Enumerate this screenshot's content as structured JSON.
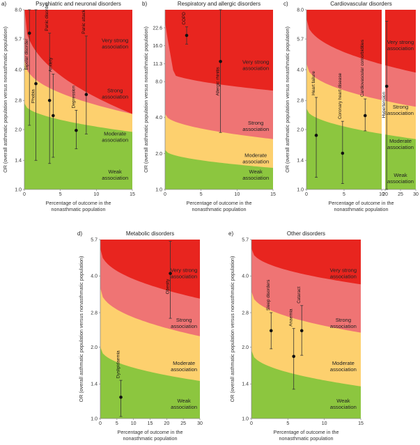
{
  "colors": {
    "weak": "#8cc63f",
    "moderate": "#fdd06e",
    "strong": "#ef7474",
    "very_strong": "#e8251f"
  },
  "y_axis_label": "OR (overall asthmatic population versus nonasthmatic population)",
  "x_axis_label_line1": "Percentage of outcome in the",
  "x_axis_label_line2": "nonasthmatic population",
  "zone_labels": {
    "very_strong": [
      "Very strong",
      "association"
    ],
    "strong": [
      "Strong",
      "association"
    ],
    "moderate": [
      "Moderate",
      "association"
    ],
    "weak": [
      "Weak",
      "association"
    ]
  },
  "chart_data": [
    {
      "id": "a",
      "letter": "a)",
      "title": "Psychiatric and neuronal disorders",
      "type": "scatter",
      "xlim": [
        0,
        15
      ],
      "xticks": [
        "0",
        "5",
        "10",
        "15"
      ],
      "ylim": [
        1.0,
        8.0
      ],
      "yticks": [
        "1.0",
        "1.4",
        "2.0",
        "2.8",
        "4.0",
        "5.7",
        "8.0"
      ],
      "points": [
        {
          "label": "Bipolar disorder",
          "x": 0.7,
          "y": 6.1,
          "lo": 2.1,
          "hi": 8.0
        },
        {
          "label": "Phobia",
          "x": 1.6,
          "y": 3.4,
          "lo": 1.4,
          "hi": 8.0
        },
        {
          "label": "Panic disorder",
          "x": 3.5,
          "y": 2.8,
          "lo": 1.35,
          "hi": 6.1
        },
        {
          "label": "Anxiety",
          "x": 4.0,
          "y": 2.35,
          "lo": 1.45,
          "hi": 3.8
        },
        {
          "label": "Depression",
          "x": 7.2,
          "y": 1.98,
          "lo": 1.6,
          "hi": 2.5
        },
        {
          "label": "Panic attack",
          "x": 8.6,
          "y": 3.0,
          "lo": 1.9,
          "hi": 5.9
        }
      ]
    },
    {
      "id": "b",
      "letter": "b)",
      "title": "Respiratory and allergic disorders",
      "type": "scatter",
      "xlim": [
        0,
        15
      ],
      "xticks": [
        "0",
        "5",
        "10",
        "15"
      ],
      "ylim": [
        1.0,
        32.0
      ],
      "yticks": [
        "1.0",
        "2.0",
        "4.0",
        "8.0",
        "11.3",
        "16.0",
        "22.6"
      ],
      "points": [
        {
          "label": "COPD",
          "x": 3.0,
          "y": 19.5,
          "lo": 16.5,
          "hi": 23.0
        },
        {
          "label": "Allergic rhinitis",
          "x": 7.7,
          "y": 11.8,
          "lo": 3.0,
          "hi": 32.0
        }
      ]
    },
    {
      "id": "c",
      "letter": "c)",
      "title": "Cardiovascular disorders",
      "type": "scatter",
      "xlim": [
        0,
        30
      ],
      "xticks": [
        "0",
        "5",
        "10",
        "20",
        "25",
        "30"
      ],
      "ylim": [
        1.0,
        8.0
      ],
      "yticks": [
        "1.0",
        "1.4",
        "2.0",
        "2.8",
        "4.0",
        "5.7",
        "8.0"
      ],
      "points": [
        {
          "label": "Heart failure",
          "x": 1.3,
          "y": 1.87,
          "lo": 1.15,
          "hi": 2.9
        },
        {
          "label": "Coronary heart disease",
          "x": 4.8,
          "y": 1.52,
          "lo": 1.07,
          "hi": 2.2
        },
        {
          "label": "Cardiovascular comorbidities",
          "x": 7.8,
          "y": 2.35,
          "lo": 1.97,
          "hi": 2.85
        },
        {
          "label": "Hypertension",
          "x": 20.5,
          "y": 3.3,
          "lo": 1.0,
          "hi": 7.0
        }
      ]
    },
    {
      "id": "d",
      "letter": "d)",
      "title": "Metabolic disorders",
      "type": "scatter",
      "xlim": [
        0,
        30
      ],
      "xticks": [
        "0",
        "5",
        "10",
        "15",
        "20",
        "25",
        "30"
      ],
      "ylim": [
        1.0,
        5.7
      ],
      "yticks": [
        "1.0",
        "1.4",
        "2.0",
        "2.8",
        "4.0",
        "5.7"
      ],
      "points": [
        {
          "label": "Dyslipidaemia",
          "x": 6.2,
          "y": 1.23,
          "lo": 1.02,
          "hi": 1.45
        },
        {
          "label": "Obesity",
          "x": 21.1,
          "y": 4.1,
          "lo": 2.65,
          "hi": 5.6
        }
      ]
    },
    {
      "id": "e",
      "letter": "e)",
      "title": "Other disorders",
      "type": "scatter",
      "xlim": [
        0,
        15
      ],
      "xticks": [
        "0",
        "5",
        "10",
        "15"
      ],
      "ylim": [
        1.0,
        5.7
      ],
      "yticks": [
        "1.0",
        "1.4",
        "2.0",
        "2.8",
        "4.0",
        "5.7"
      ],
      "points": [
        {
          "label": "Sleep disorders",
          "x": 2.7,
          "y": 2.35,
          "lo": 1.97,
          "hi": 2.8
        },
        {
          "label": "Anaemia",
          "x": 5.8,
          "y": 1.83,
          "lo": 1.33,
          "hi": 2.4
        },
        {
          "label": "Cataract",
          "x": 6.9,
          "y": 2.35,
          "lo": 1.85,
          "hi": 3.0
        }
      ]
    }
  ]
}
